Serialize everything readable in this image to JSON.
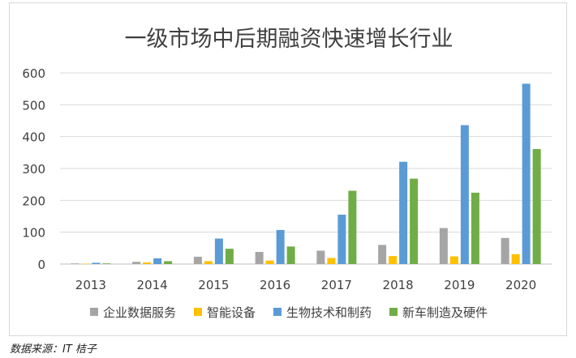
{
  "chart_data": {
    "type": "bar",
    "title": "一级市场中后期融资快速增长行业",
    "categories": [
      "2013",
      "2014",
      "2015",
      "2016",
      "2017",
      "2018",
      "2019",
      "2020"
    ],
    "series": [
      {
        "name": "企业数据服务",
        "color": "#a5a5a5",
        "values": [
          2,
          7,
          23,
          38,
          42,
          60,
          113,
          82
        ]
      },
      {
        "name": "智能设备",
        "color": "#ffc000",
        "values": [
          1,
          5,
          9,
          11,
          19,
          25,
          24,
          31
        ]
      },
      {
        "name": "生物技术和制药",
        "color": "#5b9bd5",
        "values": [
          4,
          18,
          80,
          107,
          155,
          321,
          436,
          566
        ]
      },
      {
        "name": "新车制造及硬件",
        "color": "#70ad47",
        "values": [
          2,
          9,
          48,
          55,
          230,
          268,
          224,
          361
        ]
      }
    ],
    "yticks": [
      0,
      100,
      200,
      300,
      400,
      500,
      600
    ],
    "ylim": [
      0,
      600
    ],
    "xlabel": "",
    "ylabel": "",
    "grid": true,
    "legend_position": "bottom"
  },
  "footer": {
    "source": "数据来源：IT 桔子"
  }
}
